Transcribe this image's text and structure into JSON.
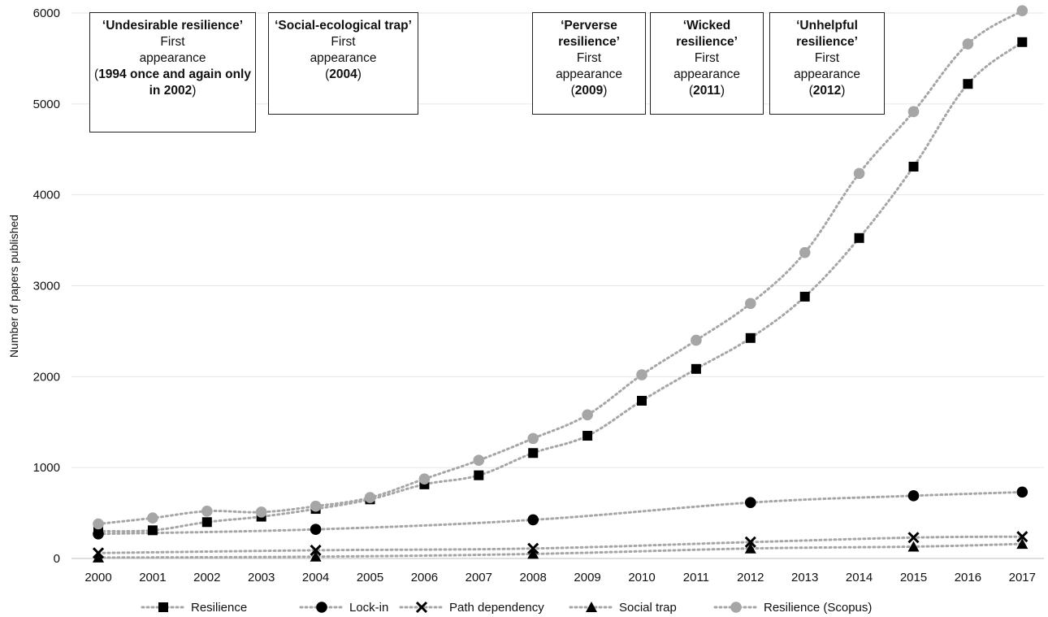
{
  "chart_data": {
    "type": "line",
    "ylabel": "Number of papers published",
    "xlabel": "",
    "ylim": [
      0,
      6000
    ],
    "yticks": [
      0,
      1000,
      2000,
      3000,
      4000,
      5000,
      6000
    ],
    "ytick_labels": [
      "0",
      "1000",
      "2000",
      "3000",
      "4000",
      "5000",
      "6000"
    ],
    "categories": [
      "2000",
      "2001",
      "2002",
      "2003",
      "2004",
      "2005",
      "2006",
      "2007",
      "2008",
      "2009",
      "2010",
      "2011",
      "2012",
      "2013",
      "2014",
      "2015",
      "2016",
      "2017"
    ],
    "grid": "horizontal",
    "legend_position": "bottom",
    "series": [
      {
        "name": "Resilience",
        "marker": "square",
        "color": "#000000",
        "values": [
          300,
          310,
          400,
          460,
          545,
          650,
          815,
          915,
          1160,
          1350,
          1735,
          2085,
          2425,
          2880,
          3525,
          4310,
          5220,
          5680
        ]
      },
      {
        "name": "Lock-in",
        "marker": "circle",
        "color": "#000000",
        "values": [
          270,
          null,
          null,
          null,
          320,
          null,
          null,
          null,
          425,
          null,
          null,
          null,
          615,
          null,
          null,
          690,
          null,
          730
        ]
      },
      {
        "name": "Path dependency",
        "marker": "x",
        "color": "#000000",
        "values": [
          60,
          null,
          null,
          null,
          90,
          null,
          null,
          null,
          110,
          null,
          null,
          null,
          180,
          null,
          null,
          230,
          null,
          240
        ]
      },
      {
        "name": "Social trap",
        "marker": "triangle",
        "color": "#000000",
        "values": [
          10,
          null,
          null,
          null,
          20,
          null,
          null,
          null,
          50,
          null,
          null,
          null,
          110,
          null,
          null,
          130,
          null,
          160
        ]
      },
      {
        "name": "Resilience (Scopus)",
        "marker": "circle",
        "color": "#a6a6a6",
        "values": [
          380,
          445,
          520,
          510,
          575,
          670,
          875,
          1080,
          1320,
          1580,
          2020,
          2400,
          2805,
          3365,
          4235,
          4915,
          5660,
          6025
        ]
      }
    ],
    "annotations": [
      {
        "title": "‘Undesirable resilience’",
        "text1": "First",
        "text2": "appearance",
        "date_bold": "1994 once and again only in 2002",
        "date_tail": ")"
      },
      {
        "title": "‘Social-ecological trap’",
        "text1": "First",
        "text2": "appearance",
        "date_bold": "2004",
        "date_tail": ")"
      },
      {
        "title": "‘Perverse resilience’",
        "text1": "First",
        "text2": "appearance",
        "date_bold": "2009",
        "date_tail": ")"
      },
      {
        "title": "‘Wicked resilience’",
        "text1": "First",
        "text2": "appearance",
        "date_bold": "2011",
        "date_tail": ")"
      },
      {
        "title": "‘Unhelpful resilience’",
        "text1": "First",
        "text2": "appearance",
        "date_bold": "2012",
        "date_tail": ")"
      }
    ]
  }
}
